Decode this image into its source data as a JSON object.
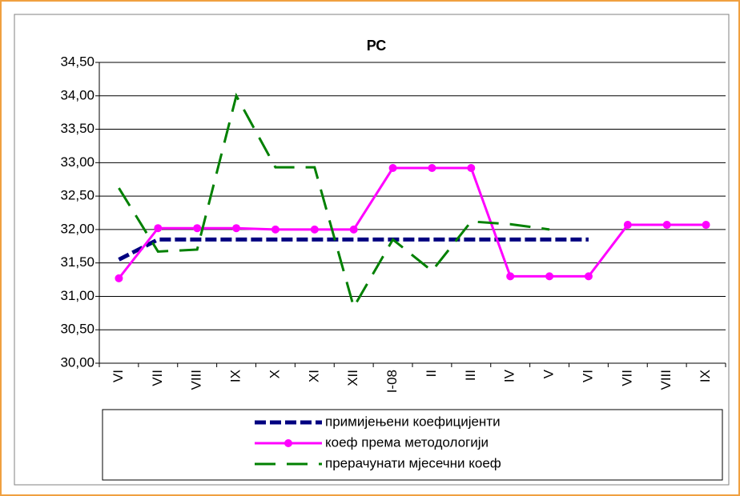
{
  "chart_data": {
    "type": "line",
    "title": "РС",
    "categories": [
      "VI",
      "VII",
      "VIII",
      "IX",
      "X",
      "XI",
      "XII",
      "I-08",
      "II",
      "III",
      "IV",
      "V",
      "VI",
      "VII",
      "VIII",
      "IX"
    ],
    "series": [
      {
        "name": "примијењени коефицијенти",
        "color": "#000080",
        "dash": "dash",
        "values": [
          31.55,
          31.85,
          31.85,
          31.85,
          31.85,
          31.85,
          31.85,
          31.85,
          31.85,
          31.85,
          31.85,
          31.85,
          31.85,
          null,
          null,
          null
        ]
      },
      {
        "name": "коеф према методологији",
        "color": "#ff00ff",
        "dash": "solid",
        "marker": "circle",
        "values": [
          31.27,
          32.02,
          32.02,
          32.02,
          32.0,
          32.0,
          32.0,
          32.92,
          32.92,
          32.92,
          31.3,
          31.3,
          31.3,
          32.07,
          32.07,
          32.07
        ]
      },
      {
        "name": "прерачунати мјесечни коеф",
        "color": "#008000",
        "dash": "longdash",
        "values": [
          32.62,
          31.67,
          31.7,
          34.0,
          32.93,
          32.93,
          30.84,
          31.85,
          31.38,
          32.12,
          32.08,
          32.0,
          null,
          null,
          null,
          null
        ]
      }
    ],
    "ylim": [
      30,
      34.5
    ],
    "yticks": [
      {
        "value": 30,
        "label": "30,00"
      },
      {
        "value": 30.5,
        "label": "30,50"
      },
      {
        "value": 31,
        "label": "31,00"
      },
      {
        "value": 31.5,
        "label": "31,50"
      },
      {
        "value": 32,
        "label": "32,00"
      },
      {
        "value": 32.5,
        "label": "32,50"
      },
      {
        "value": 33,
        "label": "33,00"
      },
      {
        "value": 33.5,
        "label": "33,50"
      },
      {
        "value": 34,
        "label": "34,00"
      },
      {
        "value": 34.5,
        "label": "34,50"
      }
    ],
    "grid": true,
    "legend": "bottom"
  }
}
